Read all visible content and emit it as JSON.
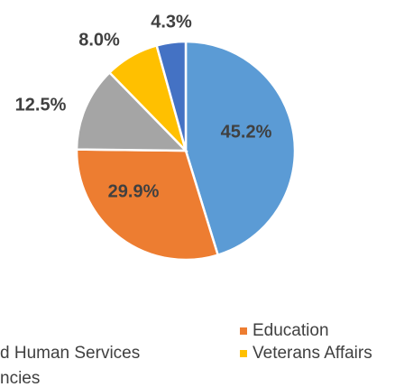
{
  "chart_data": {
    "type": "pie",
    "categories": [
      null,
      "Education",
      "d Human Services",
      "Veterans Affairs",
      "ncies"
    ],
    "values": [
      45.2,
      29.9,
      12.5,
      8.0,
      4.3
    ],
    "value_labels": [
      "45.2%",
      "29.9%",
      "12.5%",
      "8.0%",
      "4.3%"
    ],
    "colors": [
      "#5b9bd5",
      "#ed7d31",
      "#a5a5a5",
      "#ffc000",
      "#4472c4"
    ]
  }
}
